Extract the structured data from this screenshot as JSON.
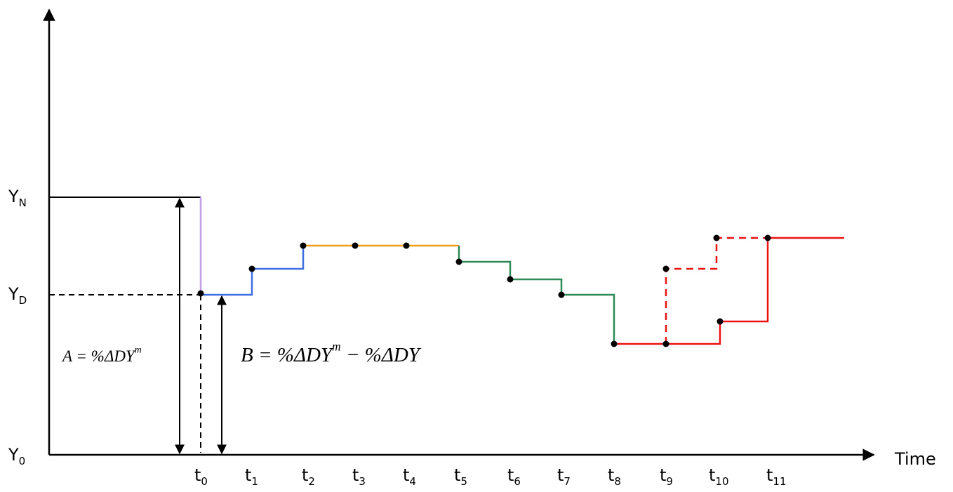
{
  "y_axis": {
    "ticks": [
      {
        "main": "Y",
        "sub": "N"
      },
      {
        "main": "Y",
        "sub": "D"
      },
      {
        "main": "Y",
        "sub": "0"
      }
    ]
  },
  "x_axis": {
    "title": "Time",
    "ticks": [
      {
        "main": "t",
        "sub": "0"
      },
      {
        "main": "t",
        "sub": "1"
      },
      {
        "main": "t",
        "sub": "2"
      },
      {
        "main": "t",
        "sub": "3"
      },
      {
        "main": "t",
        "sub": "4"
      },
      {
        "main": "t",
        "sub": "5"
      },
      {
        "main": "t",
        "sub": "6"
      },
      {
        "main": "t",
        "sub": "7"
      },
      {
        "main": "t",
        "sub": "8"
      },
      {
        "main": "t",
        "sub": "9"
      },
      {
        "main": "t",
        "sub": "10"
      },
      {
        "main": "t",
        "sub": "11"
      }
    ]
  },
  "annotations": {
    "a": {
      "lhs": "A",
      "eq": " = %ΔDY",
      "sup": "m"
    },
    "b": {
      "lhs": "B",
      "eq": " = %ΔDY",
      "sup": "m",
      "rest": " − %ΔDY"
    }
  },
  "colors": {
    "drop": "#c29ee8",
    "blue": "#3d6fe0",
    "orange": "#f39c12",
    "green": "#2e8b57",
    "red": "#ee1111",
    "axis": "#000000"
  }
}
